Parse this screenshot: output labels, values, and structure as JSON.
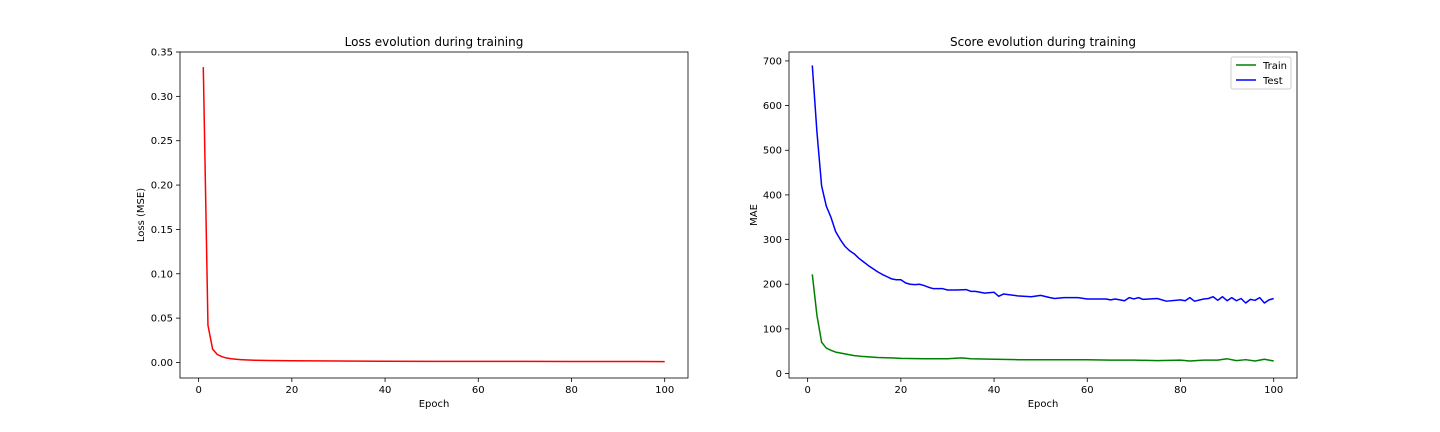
{
  "chart_data": [
    {
      "type": "line",
      "title": "Loss evolution during training",
      "xlabel": "Epoch",
      "ylabel": "Loss (MSE)",
      "xlim": [
        -4,
        105
      ],
      "ylim": [
        -0.0175,
        0.35
      ],
      "xticks": [
        0,
        20,
        40,
        60,
        80,
        100
      ],
      "xtick_labels": [
        "0",
        "20",
        "40",
        "60",
        "80",
        "100"
      ],
      "yticks": [
        0,
        0.05,
        0.1,
        0.15,
        0.2,
        0.25,
        0.3,
        0.35
      ],
      "ytick_labels": [
        "0.00",
        "0.05",
        "0.10",
        "0.15",
        "0.20",
        "0.25",
        "0.30",
        "0.35"
      ],
      "legend": null,
      "series": [
        {
          "name": "Loss",
          "color": "#ff0000",
          "x": [
            1,
            2,
            3,
            4,
            5,
            6,
            7,
            8,
            9,
            10,
            12,
            15,
            20,
            30,
            40,
            50,
            60,
            70,
            80,
            90,
            95,
            100
          ],
          "y": [
            0.333,
            0.042,
            0.015,
            0.009,
            0.0065,
            0.005,
            0.0042,
            0.0036,
            0.0032,
            0.0029,
            0.0025,
            0.0022,
            0.0019,
            0.0016,
            0.0014,
            0.0013,
            0.0012,
            0.0012,
            0.0011,
            0.0011,
            0.0011,
            0.001
          ]
        }
      ]
    },
    {
      "type": "line",
      "title": "Score evolution during training",
      "xlabel": "Epoch",
      "ylabel": "MAE",
      "xlim": [
        -4,
        105
      ],
      "ylim": [
        -10,
        720
      ],
      "xticks": [
        0,
        20,
        40,
        60,
        80,
        100
      ],
      "xtick_labels": [
        "0",
        "20",
        "40",
        "60",
        "80",
        "100"
      ],
      "yticks": [
        0,
        100,
        200,
        300,
        400,
        500,
        600,
        700
      ],
      "ytick_labels": [
        "0",
        "100",
        "200",
        "300",
        "400",
        "500",
        "600",
        "700"
      ],
      "legend": "top-right",
      "series": [
        {
          "name": "Train",
          "color": "#008000",
          "x": [
            1,
            2,
            3,
            4,
            5,
            6,
            8,
            10,
            12,
            15,
            18,
            20,
            25,
            30,
            33,
            35,
            40,
            45,
            50,
            55,
            60,
            65,
            70,
            75,
            80,
            82,
            85,
            88,
            90,
            92,
            94,
            96,
            98,
            100
          ],
          "y": [
            222,
            130,
            70,
            57,
            52,
            48,
            44,
            40,
            38,
            36,
            35,
            34,
            33,
            33,
            35,
            33,
            32,
            31,
            31,
            31,
            31,
            30,
            30,
            29,
            30,
            28,
            30,
            30,
            33,
            29,
            31,
            28,
            32,
            28
          ]
        },
        {
          "name": "Test",
          "color": "#0000ff",
          "x": [
            1,
            2,
            3,
            4,
            5,
            6,
            7,
            8,
            9,
            10,
            11,
            12,
            13,
            14,
            15,
            16,
            17,
            18,
            19,
            20,
            21,
            22,
            23,
            24,
            25,
            26,
            27,
            28,
            29,
            30,
            32,
            34,
            35,
            36,
            38,
            40,
            41,
            42,
            45,
            48,
            50,
            52,
            53,
            55,
            58,
            60,
            62,
            64,
            65,
            66,
            68,
            69,
            70,
            71,
            72,
            75,
            77,
            80,
            81,
            82,
            83,
            85,
            86,
            87,
            88,
            89,
            90,
            91,
            92,
            93,
            94,
            95,
            96,
            97,
            98,
            99,
            100
          ],
          "y": [
            690,
            540,
            420,
            375,
            350,
            318,
            300,
            285,
            275,
            268,
            258,
            250,
            242,
            235,
            228,
            222,
            217,
            212,
            210,
            210,
            203,
            200,
            199,
            200,
            197,
            193,
            190,
            190,
            190,
            187,
            187,
            188,
            184,
            184,
            180,
            182,
            173,
            178,
            174,
            172,
            175,
            170,
            168,
            170,
            170,
            167,
            167,
            167,
            165,
            167,
            163,
            170,
            167,
            170,
            166,
            168,
            162,
            165,
            163,
            170,
            162,
            167,
            168,
            172,
            164,
            172,
            163,
            170,
            163,
            168,
            158,
            166,
            164,
            170,
            158,
            165,
            168
          ]
        }
      ]
    }
  ]
}
